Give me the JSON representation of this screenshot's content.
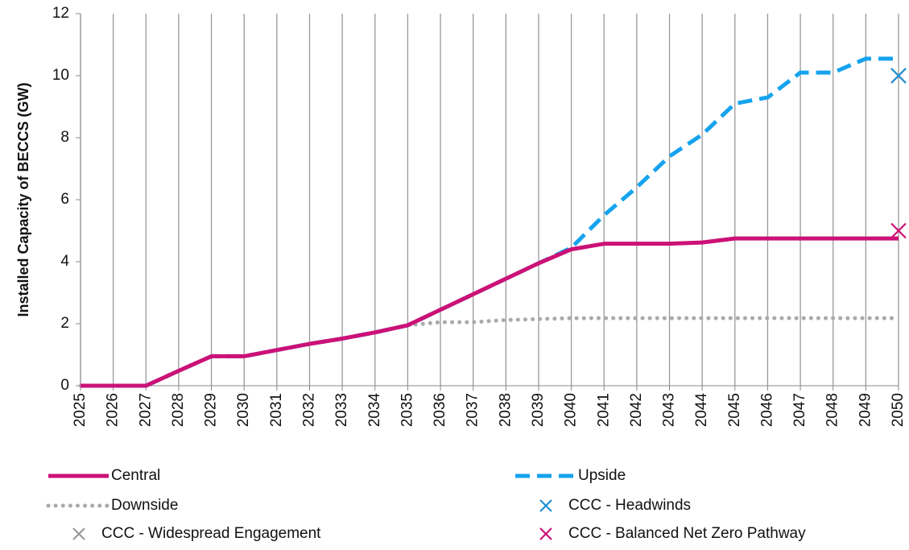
{
  "chart_data": {
    "type": "line",
    "y_label": "Installed Capacity of BECCS (GW)",
    "x": [
      2025,
      2026,
      2027,
      2028,
      2029,
      2030,
      2031,
      2032,
      2033,
      2034,
      2035,
      2036,
      2037,
      2038,
      2039,
      2040,
      2041,
      2042,
      2043,
      2044,
      2045,
      2046,
      2047,
      2048,
      2049,
      2050
    ],
    "xlim": [
      2025,
      2050
    ],
    "xticks": [
      2025,
      2026,
      2027,
      2028,
      2029,
      2030,
      2031,
      2032,
      2033,
      2034,
      2035,
      2036,
      2037,
      2038,
      2039,
      2040,
      2041,
      2042,
      2043,
      2044,
      2045,
      2046,
      2047,
      2048,
      2049,
      2050
    ],
    "ylim": [
      0,
      12
    ],
    "yticks": [
      0,
      2,
      4,
      6,
      8,
      10,
      12
    ],
    "grid": "x",
    "series": [
      {
        "name": "Central",
        "color": "#cc1177",
        "style": "solid",
        "values": [
          0,
          0,
          0,
          0.48,
          0.95,
          0.95,
          1.15,
          1.35,
          1.52,
          1.72,
          1.95,
          2.45,
          2.95,
          3.45,
          3.95,
          4.4,
          4.58,
          4.58,
          4.58,
          4.62,
          4.75,
          4.75,
          4.75,
          4.75,
          4.75,
          4.75
        ]
      },
      {
        "name": "Upside",
        "color": "#16a3ee",
        "style": "dashed",
        "values": [
          0,
          0,
          0,
          0.48,
          0.95,
          0.95,
          1.15,
          1.35,
          1.52,
          1.72,
          1.95,
          2.45,
          2.95,
          3.45,
          3.95,
          4.45,
          5.5,
          6.4,
          7.4,
          8.1,
          9.1,
          9.3,
          10.1,
          10.1,
          10.55,
          10.55
        ]
      },
      {
        "name": "Downside",
        "color": "#aaaaaa",
        "style": "dotted",
        "values": [
          0,
          0,
          0,
          0.48,
          0.95,
          0.95,
          1.15,
          1.35,
          1.52,
          1.72,
          1.95,
          2.05,
          2.05,
          2.12,
          2.15,
          2.18,
          2.18,
          2.18,
          2.18,
          2.18,
          2.18,
          2.18,
          2.18,
          2.18,
          2.18,
          2.18
        ]
      },
      {
        "name": "CCC - Headwinds",
        "color": "#1f8fd0",
        "style": "marker",
        "x": [
          2050
        ],
        "values": [
          10
        ]
      },
      {
        "name": "CCC - Widespread Engagement",
        "color": "#999999",
        "style": "marker",
        "x": [
          2050
        ],
        "values": [
          10
        ]
      },
      {
        "name": "CCC - Balanced Net Zero Pathway",
        "color": "#cc1177",
        "style": "marker",
        "x": [
          2050
        ],
        "values": [
          5
        ]
      }
    ]
  }
}
